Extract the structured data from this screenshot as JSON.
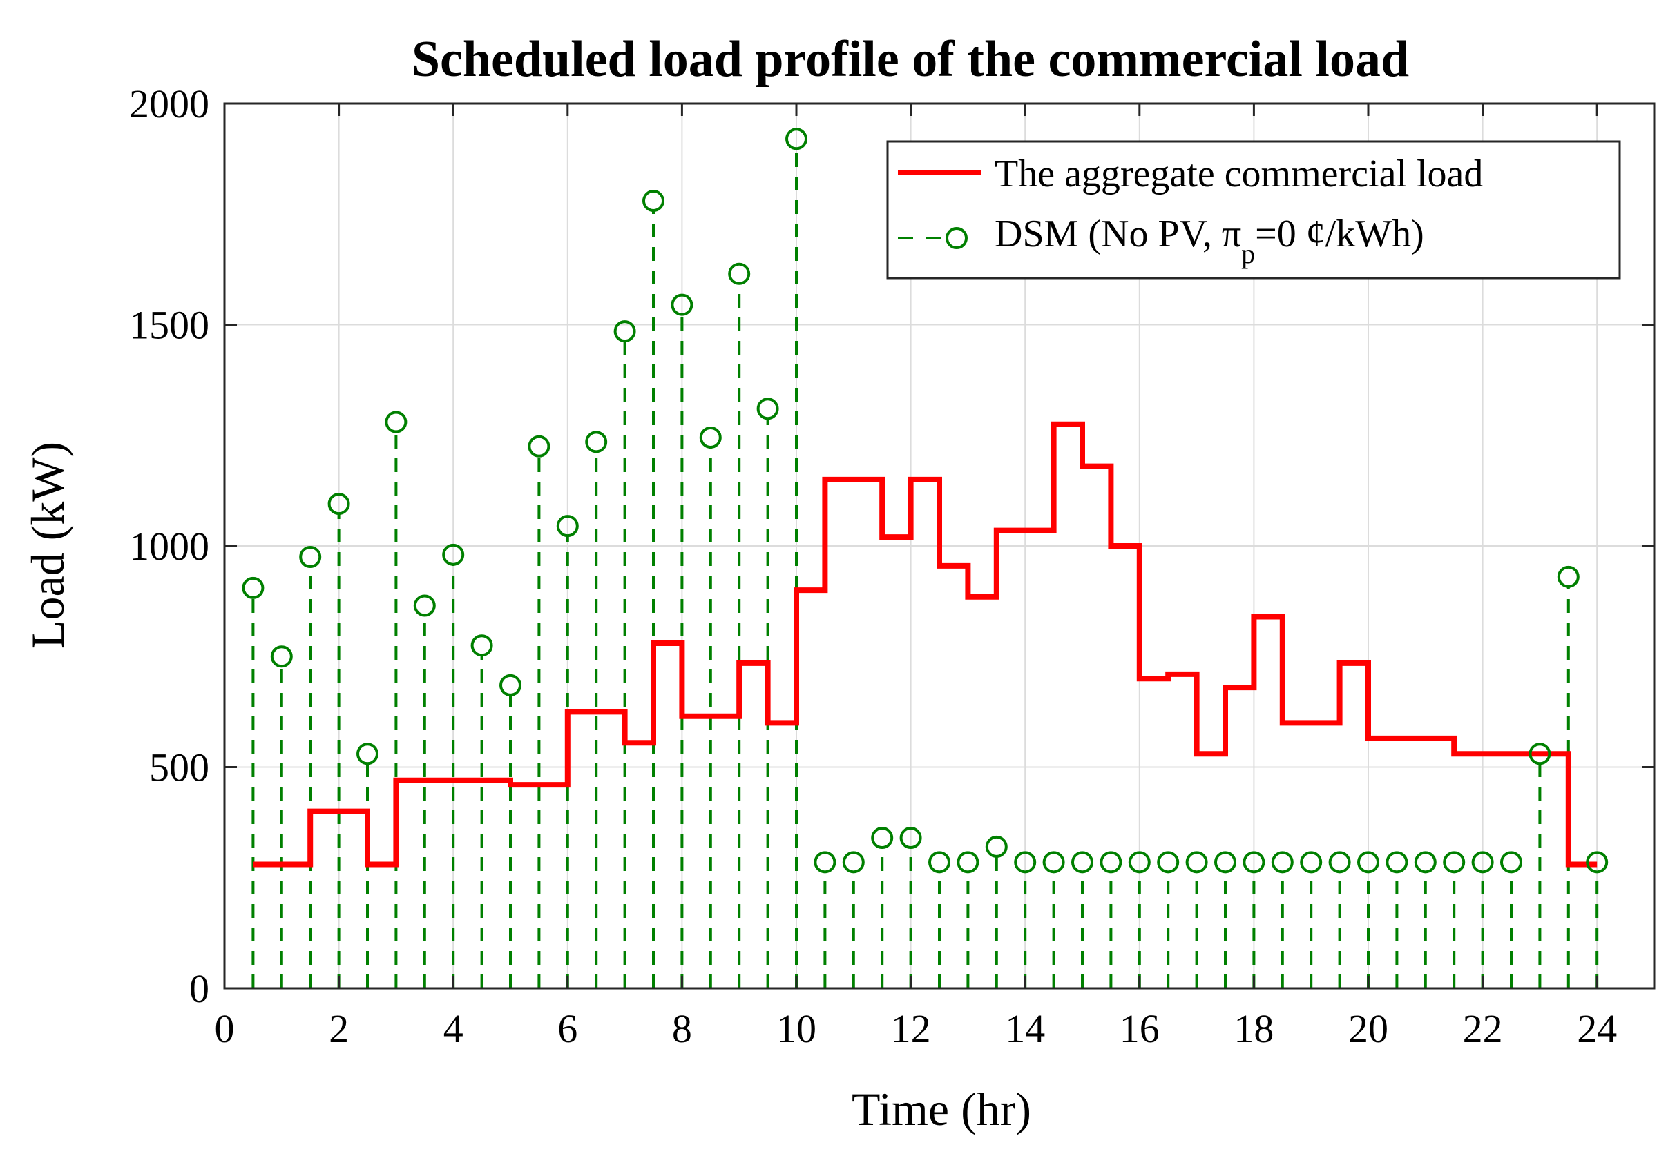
{
  "colors": {
    "aggregate": "#ff0000",
    "dsm": "#008000",
    "grid": "#dcdcdc",
    "axis": "#262626"
  },
  "chart_data": {
    "type": "line",
    "title": "Scheduled load profile of the commercial load",
    "xlabel": "Time (hr)",
    "ylabel": "Load (kW)",
    "xlim": [
      0,
      25
    ],
    "ylim": [
      0,
      2000
    ],
    "xticks": [
      0,
      2,
      4,
      6,
      8,
      10,
      12,
      14,
      16,
      18,
      20,
      22,
      24
    ],
    "yticks": [
      0,
      500,
      1000,
      1500,
      2000
    ],
    "grid": true,
    "legend_position": "top-right",
    "x": [
      0.5,
      1,
      1.5,
      2,
      2.5,
      3,
      3.5,
      4,
      4.5,
      5,
      5.5,
      6,
      6.5,
      7,
      7.5,
      8,
      8.5,
      9,
      9.5,
      10,
      10.5,
      11,
      11.5,
      12,
      12.5,
      13,
      13.5,
      14,
      14.5,
      15,
      15.5,
      16,
      16.5,
      17,
      17.5,
      18,
      18.5,
      19,
      19.5,
      20,
      20.5,
      21,
      21.5,
      22,
      22.5,
      23,
      23.5,
      24
    ],
    "series": [
      {
        "name": "The aggregate commercial load",
        "style": "stairs",
        "values": [
          280,
          280,
          400,
          400,
          280,
          470,
          470,
          470,
          470,
          460,
          460,
          625,
          625,
          555,
          780,
          615,
          615,
          735,
          600,
          900,
          1150,
          1150,
          1020,
          1150,
          955,
          885,
          1035,
          1035,
          1275,
          1180,
          1000,
          700,
          710,
          530,
          680,
          840,
          600,
          600,
          735,
          565,
          565,
          565,
          530,
          530,
          530,
          530,
          280,
          280
        ]
      },
      {
        "name": "DSM (No PV, π",
        "name_subscript": "p",
        "name_suffix": "=0 ¢/kWh)",
        "style": "stem",
        "values": [
          905,
          750,
          975,
          1095,
          530,
          1280,
          865,
          980,
          775,
          685,
          1225,
          1045,
          1235,
          1485,
          1780,
          1545,
          1245,
          1615,
          1310,
          1920,
          285,
          285,
          340,
          340,
          285,
          285,
          320,
          285,
          285,
          285,
          285,
          285,
          285,
          285,
          285,
          285,
          285,
          285,
          285,
          285,
          285,
          285,
          285,
          285,
          285,
          530,
          930,
          285
        ]
      }
    ]
  }
}
